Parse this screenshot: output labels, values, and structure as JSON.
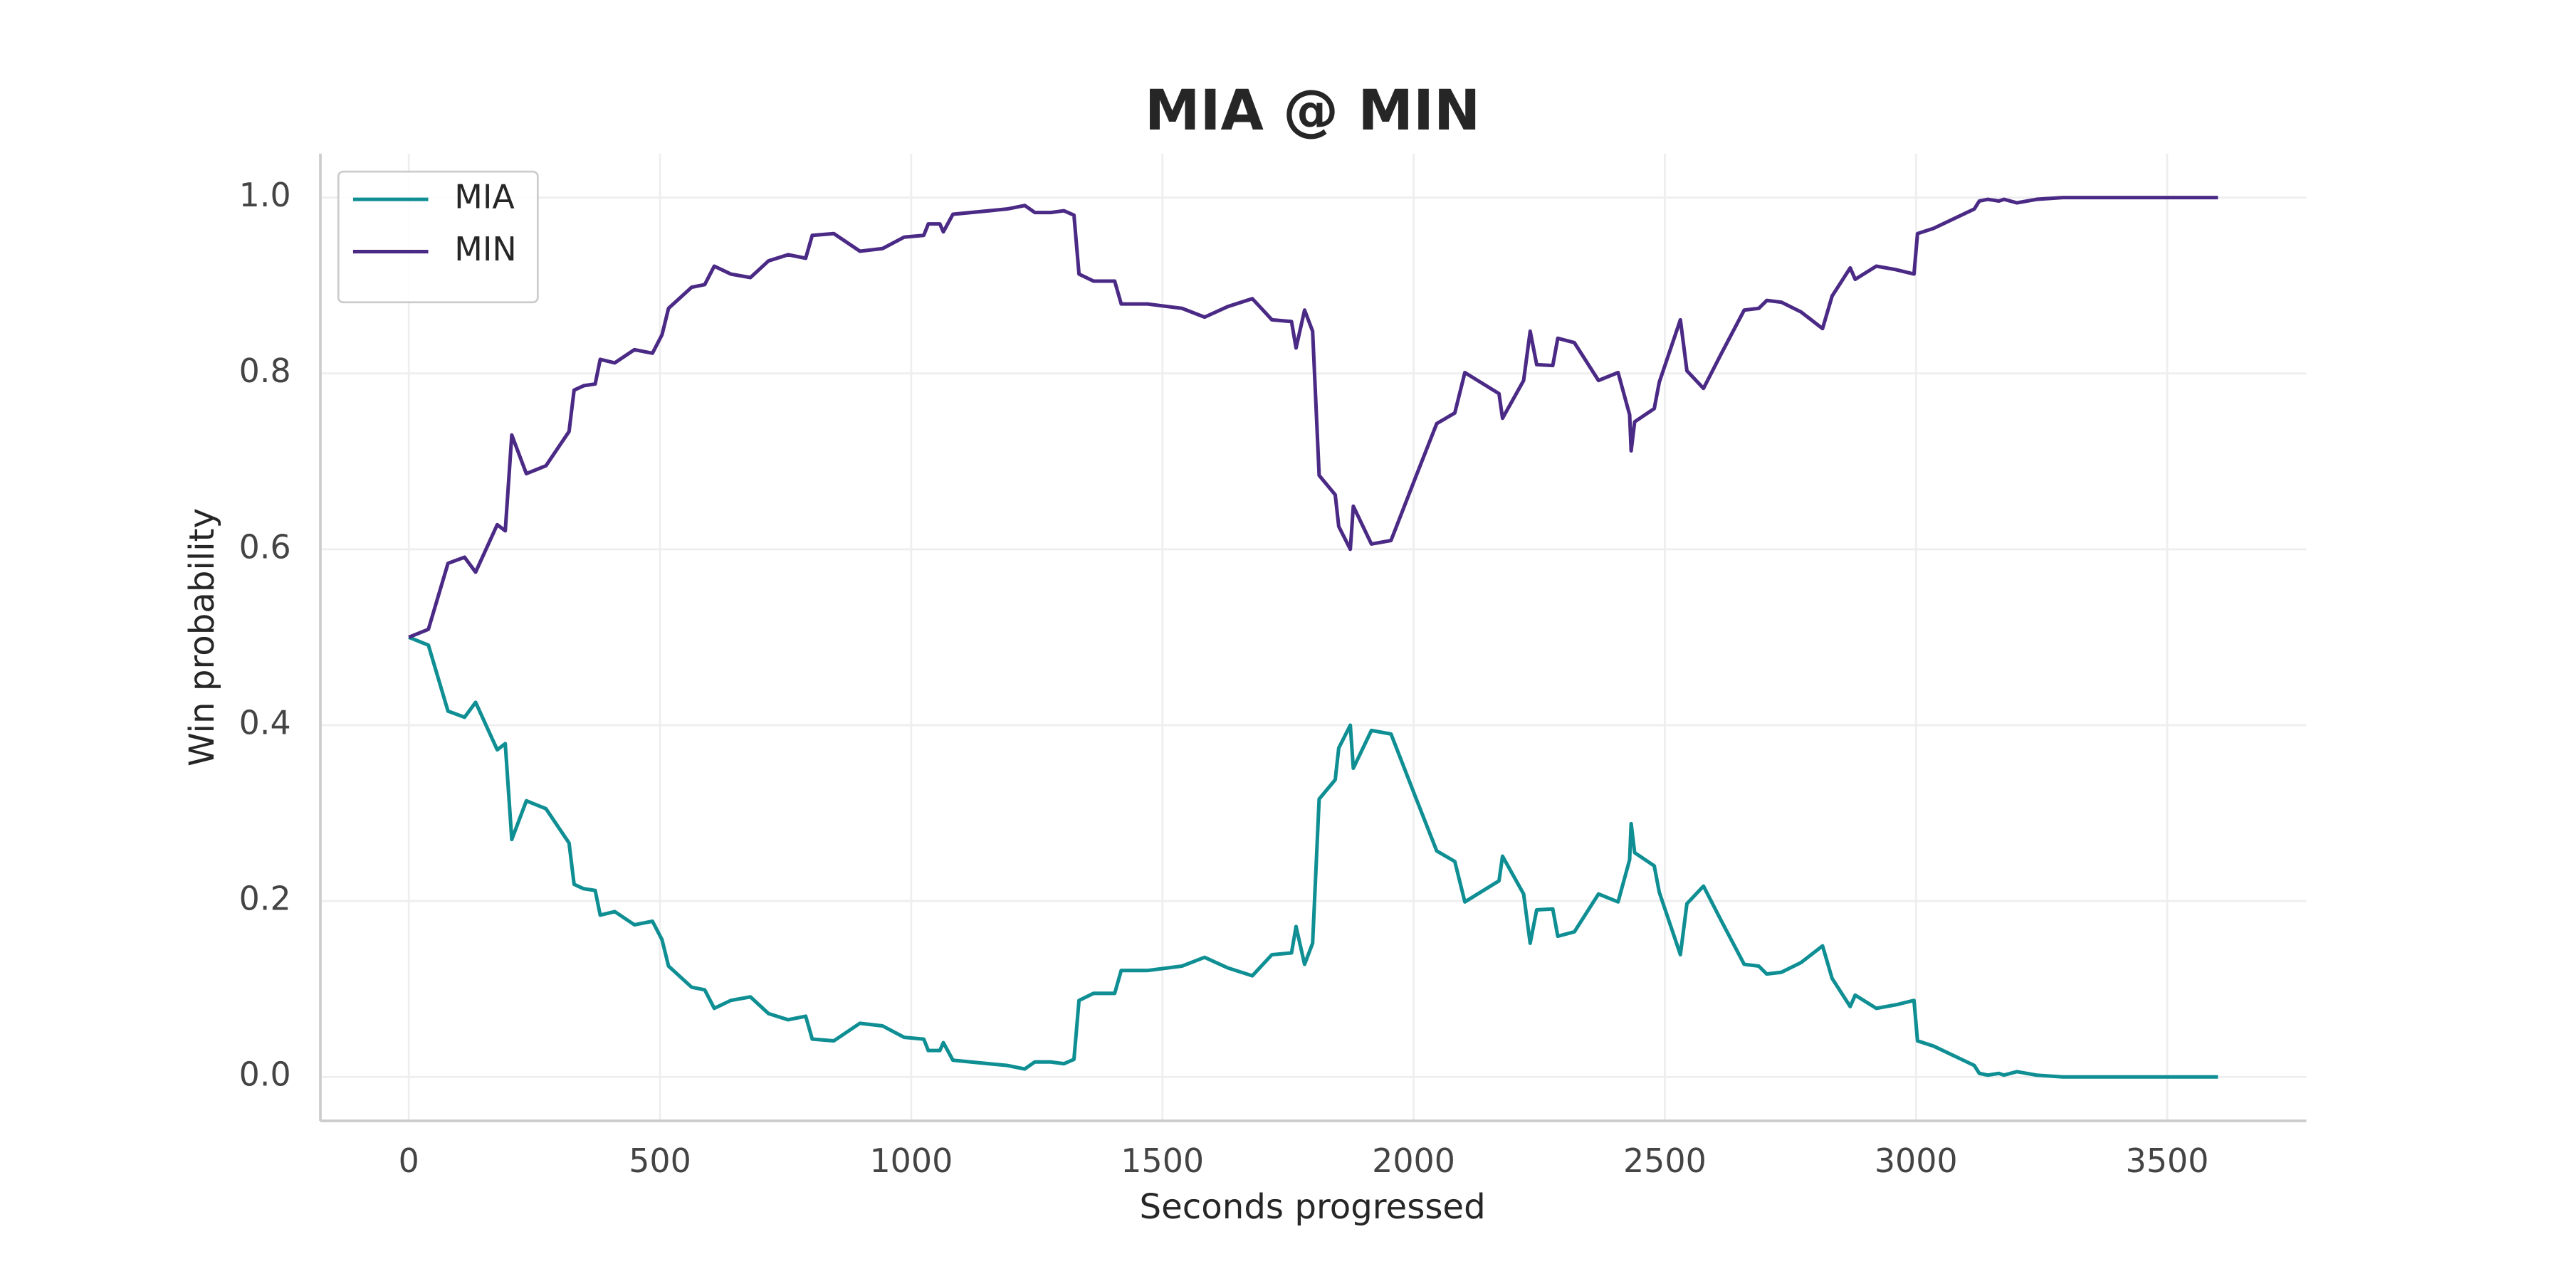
{
  "chart_data": {
    "type": "line",
    "title": "MIA @ MIN",
    "xlabel": "Seconds progressed",
    "ylabel": "Win probability",
    "x": [
      0,
      39,
      78,
      111,
      133,
      176,
      192,
      205,
      234,
      273,
      319,
      329,
      348,
      371,
      381,
      410,
      449,
      485,
      504,
      517,
      563,
      589,
      608,
      641,
      680,
      716,
      755,
      790,
      803,
      846,
      898,
      943,
      986,
      1025,
      1034,
      1057,
      1064,
      1083,
      1191,
      1226,
      1246,
      1278,
      1304,
      1324,
      1334,
      1363,
      1405,
      1418,
      1470,
      1539,
      1584,
      1630,
      1679,
      1718,
      1757,
      1766,
      1783,
      1799,
      1812,
      1844,
      1851,
      1874,
      1880,
      1916,
      1955,
      2004,
      2046,
      2082,
      2102,
      2170,
      2177,
      2219,
      2232,
      2245,
      2277,
      2287,
      2320,
      2368,
      2407,
      2430,
      2433,
      2440,
      2479,
      2489,
      2531,
      2544,
      2577,
      2612,
      2658,
      2687,
      2703,
      2732,
      2771,
      2814,
      2833,
      2869,
      2879,
      2921,
      2960,
      2996,
      3003,
      3035,
      3116,
      3126,
      3143,
      3165,
      3175,
      3201,
      3240,
      3292,
      3344,
      3546,
      3601
    ],
    "series": [
      {
        "name": "MIA",
        "color": "#0f8f93",
        "values": [
          0.5,
          0.491,
          0.416,
          0.409,
          0.426,
          0.372,
          0.379,
          0.27,
          0.314,
          0.305,
          0.266,
          0.219,
          0.214,
          0.212,
          0.184,
          0.188,
          0.173,
          0.177,
          0.156,
          0.126,
          0.102,
          0.099,
          0.078,
          0.087,
          0.091,
          0.072,
          0.065,
          0.069,
          0.043,
          0.041,
          0.061,
          0.058,
          0.045,
          0.043,
          0.03,
          0.03,
          0.039,
          0.019,
          0.013,
          0.009,
          0.017,
          0.017,
          0.015,
          0.02,
          0.087,
          0.095,
          0.095,
          0.121,
          0.121,
          0.126,
          0.136,
          0.124,
          0.115,
          0.139,
          0.141,
          0.171,
          0.128,
          0.152,
          0.316,
          0.338,
          0.374,
          0.4,
          0.351,
          0.394,
          0.39,
          0.318,
          0.257,
          0.245,
          0.199,
          0.223,
          0.251,
          0.208,
          0.152,
          0.19,
          0.191,
          0.16,
          0.165,
          0.208,
          0.199,
          0.247,
          0.288,
          0.255,
          0.24,
          0.21,
          0.139,
          0.197,
          0.217,
          0.178,
          0.128,
          0.126,
          0.117,
          0.119,
          0.13,
          0.149,
          0.112,
          0.08,
          0.093,
          0.078,
          0.082,
          0.087,
          0.041,
          0.035,
          0.013,
          0.004,
          0.002,
          0.004,
          0.002,
          0.006,
          0.002,
          0,
          0,
          0,
          0
        ]
      },
      {
        "name": "MIN",
        "color": "#4b2a86",
        "values": [
          0.5,
          0.509,
          0.584,
          0.591,
          0.574,
          0.628,
          0.621,
          0.73,
          0.686,
          0.695,
          0.734,
          0.781,
          0.786,
          0.788,
          0.816,
          0.812,
          0.827,
          0.823,
          0.844,
          0.874,
          0.898,
          0.901,
          0.922,
          0.913,
          0.909,
          0.928,
          0.935,
          0.931,
          0.957,
          0.959,
          0.939,
          0.942,
          0.955,
          0.957,
          0.97,
          0.97,
          0.961,
          0.981,
          0.987,
          0.991,
          0.983,
          0.983,
          0.985,
          0.98,
          0.913,
          0.905,
          0.905,
          0.879,
          0.879,
          0.874,
          0.864,
          0.876,
          0.885,
          0.861,
          0.859,
          0.829,
          0.872,
          0.848,
          0.684,
          0.662,
          0.626,
          0.6,
          0.649,
          0.606,
          0.61,
          0.682,
          0.743,
          0.755,
          0.801,
          0.777,
          0.749,
          0.792,
          0.848,
          0.81,
          0.809,
          0.84,
          0.835,
          0.792,
          0.801,
          0.753,
          0.712,
          0.745,
          0.76,
          0.79,
          0.861,
          0.803,
          0.783,
          0.822,
          0.872,
          0.874,
          0.883,
          0.881,
          0.87,
          0.851,
          0.888,
          0.92,
          0.907,
          0.922,
          0.918,
          0.913,
          0.959,
          0.965,
          0.987,
          0.996,
          0.998,
          0.996,
          0.998,
          0.994,
          0.998,
          1.0,
          1.0,
          1.0,
          1.0
        ]
      }
    ],
    "xlim": [
      -176,
      3777
    ],
    "ylim": [
      -0.05,
      1.05
    ],
    "xticks": [
      0,
      500,
      1000,
      1500,
      2000,
      2500,
      3000,
      3500
    ],
    "yticks": [
      {
        "value": 0,
        "label": "0.0"
      },
      0.2,
      0.4,
      0.6,
      0.8,
      {
        "value": 1,
        "label": "1.0"
      }
    ],
    "grid": true,
    "legend": "upper left"
  }
}
